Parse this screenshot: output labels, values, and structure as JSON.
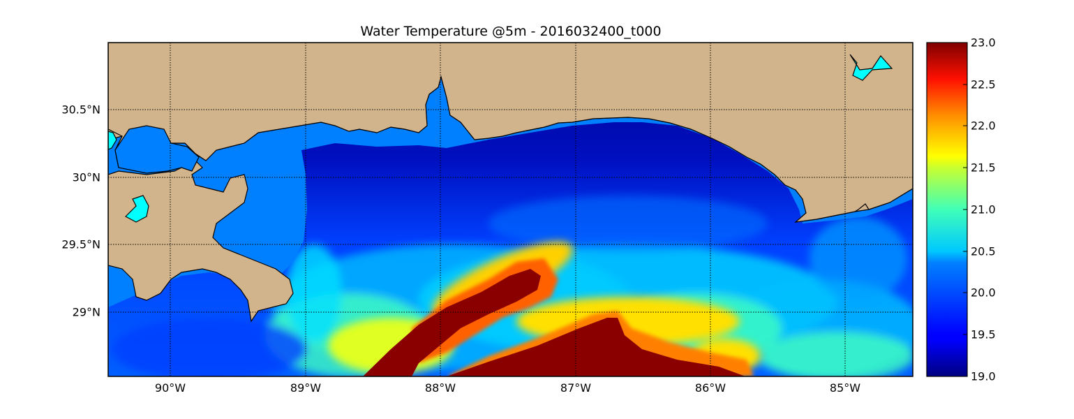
{
  "title": "Water Temperature @5m - 2016032400_t000",
  "map": {
    "lon_ticks": [
      "90°W",
      "89°W",
      "88°W",
      "87°W",
      "86°W",
      "85°W"
    ],
    "lat_ticks": [
      "30.5°N",
      "30°N",
      "29.5°N",
      "29°N"
    ],
    "land_color": "#d2b48c",
    "no_data_water_color": "#0080ff",
    "lake_color": "#00ffff",
    "grid": "dotted"
  },
  "colorbar": {
    "min": 19.0,
    "max": 23.0,
    "colormap": "jet",
    "ticks": [
      "23.0",
      "22.5",
      "22.0",
      "21.5",
      "21.0",
      "20.5",
      "20.0",
      "19.5",
      "19.0"
    ]
  },
  "chart_data": {
    "type": "heatmap",
    "title": "Water Temperature @5m - 2016032400_t000",
    "x_range": [
      -90.5,
      -84.5
    ],
    "y_range": [
      28.55,
      31.0
    ],
    "value_range": [
      19.0,
      23.0
    ]
  }
}
